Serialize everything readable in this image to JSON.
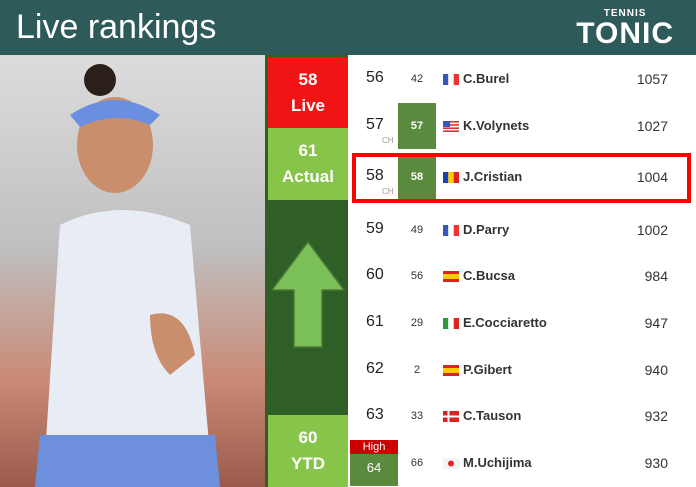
{
  "header": {
    "title": "Live rankings",
    "logo_top": "TENNIS",
    "logo_main": "TONIC"
  },
  "side": {
    "live_rank": "58",
    "live_label": "Live",
    "actual_rank": "61",
    "actual_label": "Actual",
    "ytd_rank": "60",
    "ytd_label": "YTD",
    "trend": "up-arrow",
    "colors": {
      "live": "#f01414",
      "actual": "#86c44a",
      "panel": "#2f5f27"
    }
  },
  "rows": [
    {
      "rank": "56",
      "prev": "42",
      "flag": "FR",
      "name": "C.Burel",
      "points": "1057"
    },
    {
      "rank": "57",
      "ch": "CH",
      "prev": "57",
      "flag": "US",
      "name": "K.Volynets",
      "points": "1027",
      "prev_hl": true
    },
    {
      "rank": "58",
      "ch": "CH",
      "prev": "58",
      "flag": "RO",
      "name": "J.Cristian",
      "points": "1004",
      "prev_hl": true,
      "highlight": true
    },
    {
      "rank": "59",
      "prev": "49",
      "flag": "FR",
      "name": "D.Parry",
      "points": "1002"
    },
    {
      "rank": "60",
      "prev": "56",
      "flag": "ES",
      "name": "C.Bucsa",
      "points": "984"
    },
    {
      "rank": "61",
      "prev": "29",
      "flag": "IT",
      "name": "E.Cocciaretto",
      "points": "947"
    },
    {
      "rank": "62",
      "prev": "2",
      "flag": "ES",
      "name": "P.Gibert",
      "points": "940"
    },
    {
      "rank": "63",
      "prev": "33",
      "flag": "DK",
      "name": "C.Tauson",
      "points": "932"
    },
    {
      "rank": "64",
      "high_label": "High",
      "prev": "66",
      "flag": "JP",
      "name": "M.Uchijima",
      "points": "930"
    }
  ]
}
